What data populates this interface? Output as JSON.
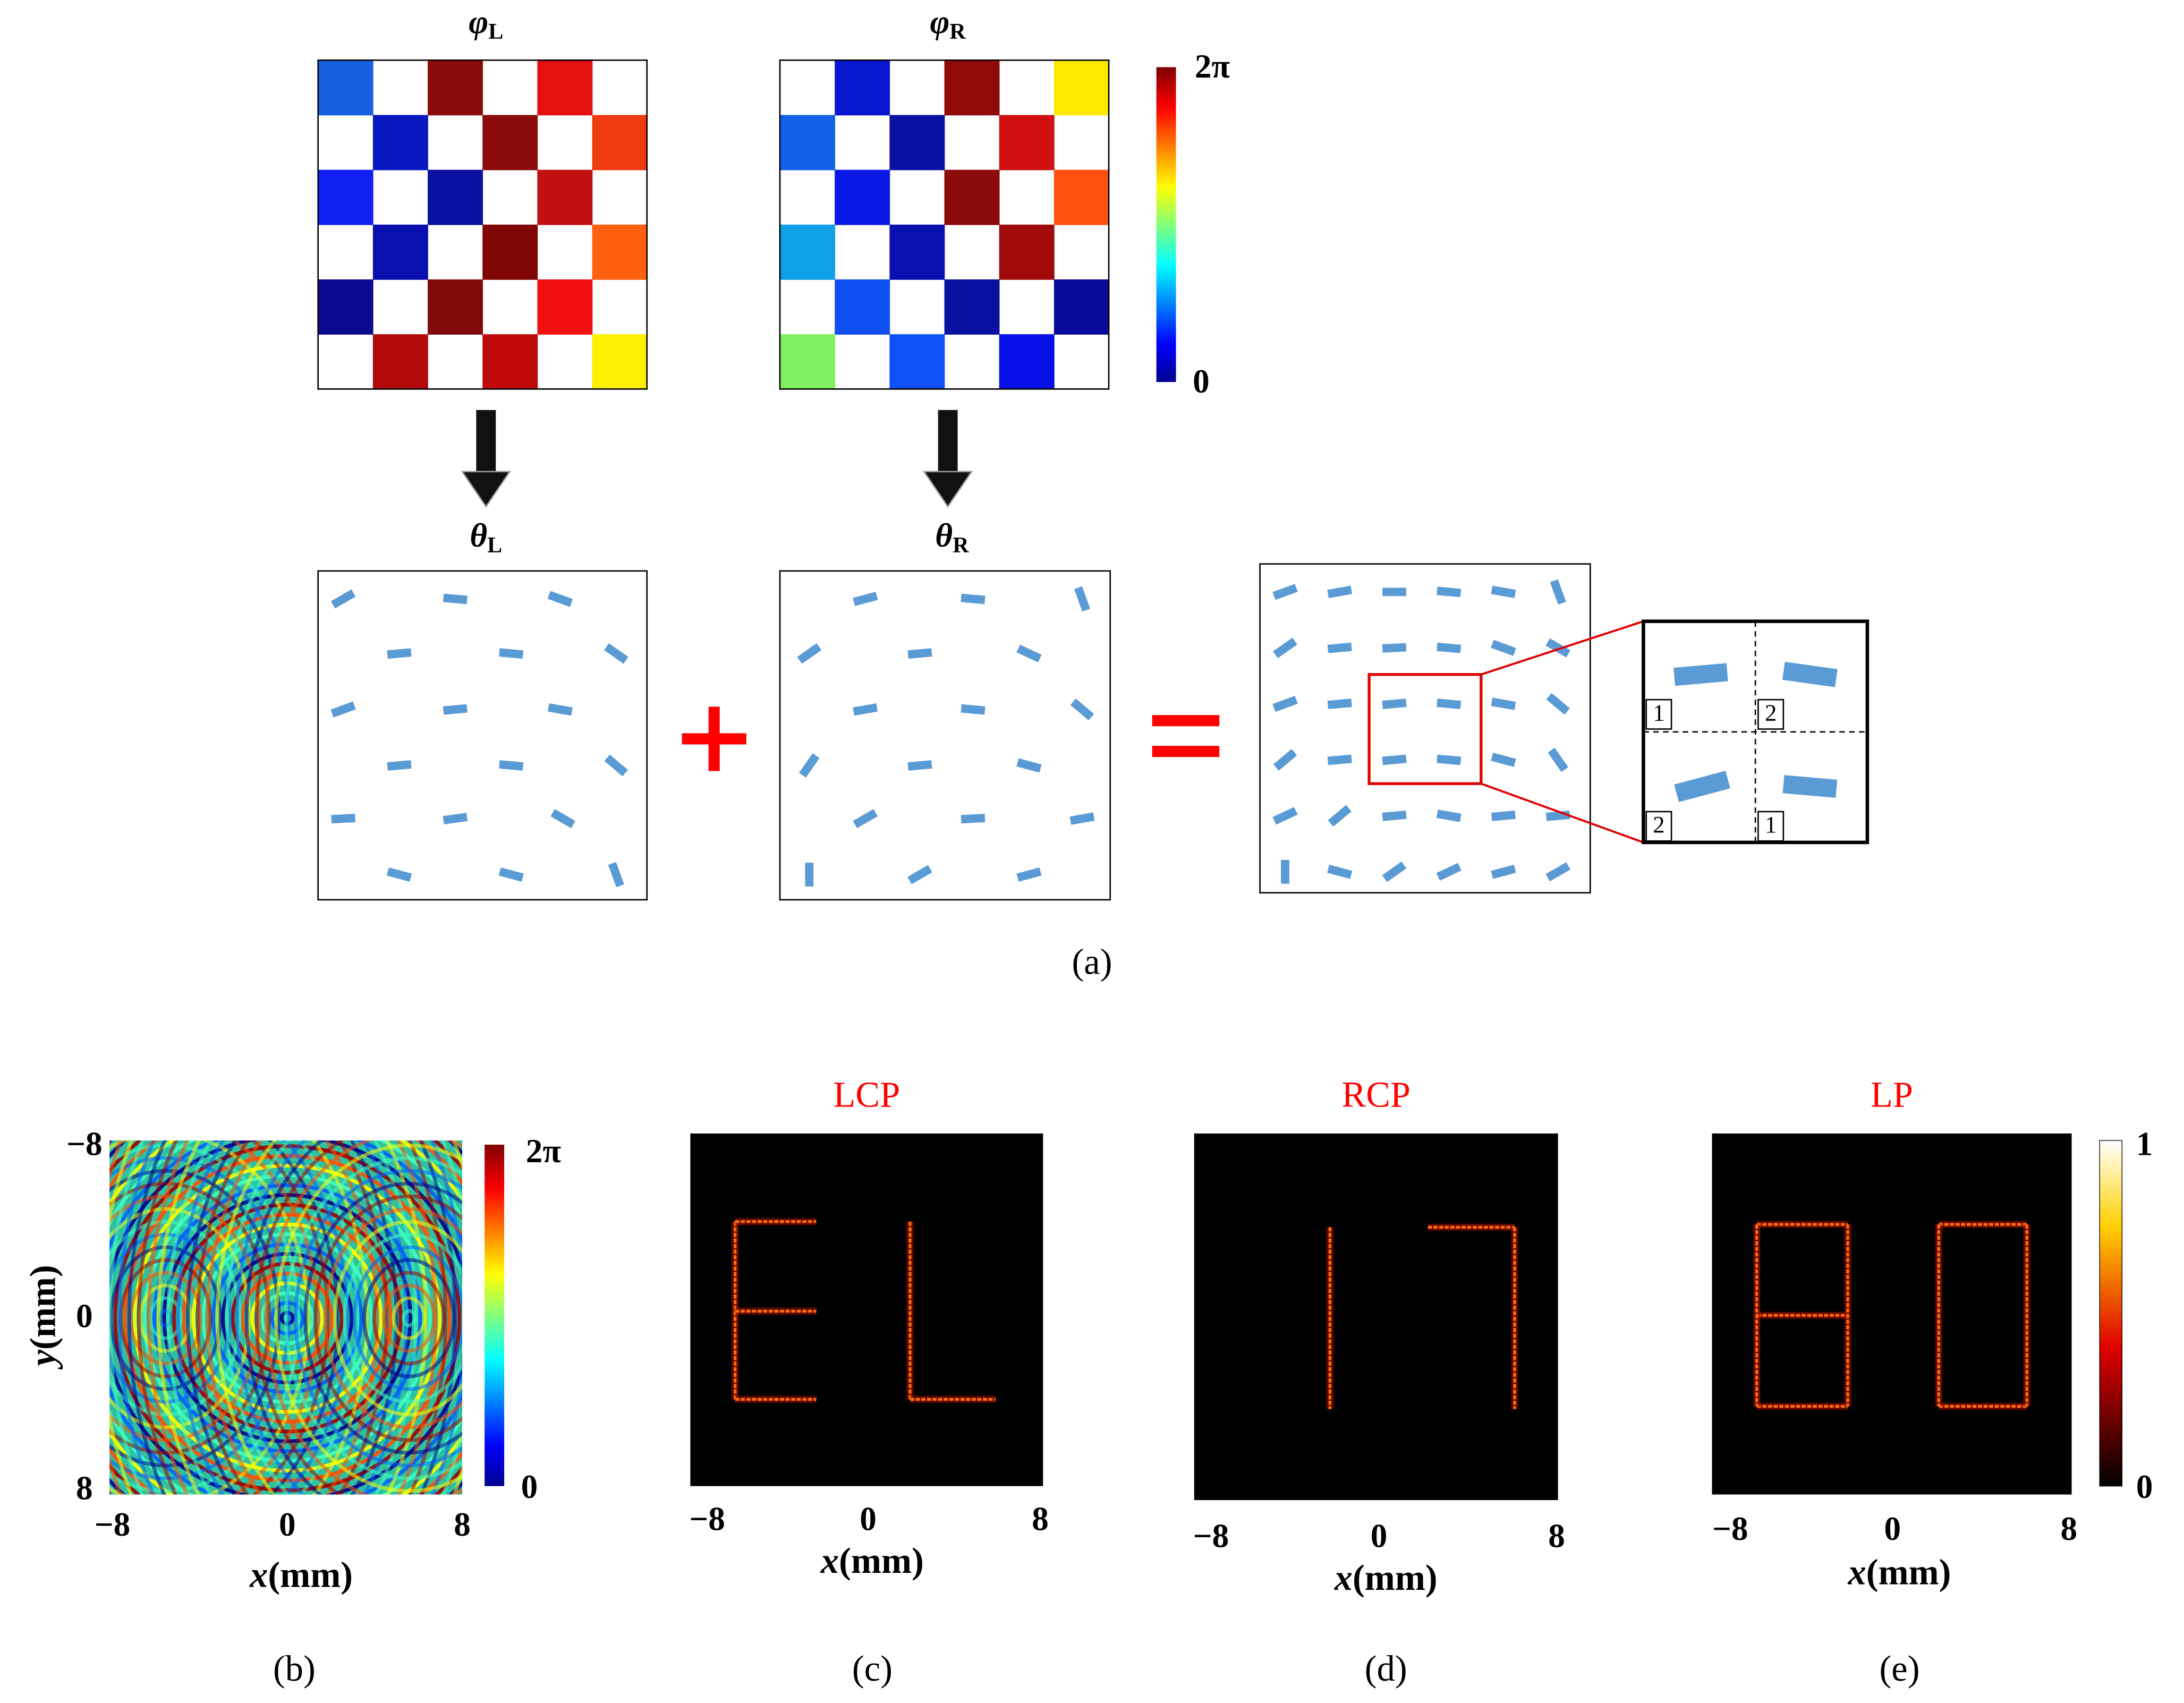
{
  "panel_a": {
    "phi_L": {
      "symbol": "φ",
      "subscript": "L"
    },
    "phi_R": {
      "symbol": "φ",
      "subscript": "R"
    },
    "colorbar": {
      "max": "2π",
      "min": "0"
    },
    "theta_L": {
      "symbol": "θ",
      "subscript": "L"
    },
    "theta_R": {
      "symbol": "θ",
      "subscript": "R"
    },
    "inset_labels": [
      "1",
      "2",
      "2",
      "1"
    ],
    "label": "(a)"
  },
  "panel_b": {
    "y_ticks": [
      "−8",
      "0",
      "8"
    ],
    "x_ticks": [
      "−8",
      "0",
      "8"
    ],
    "y_label": {
      "var": "y",
      "unit": "(mm)"
    },
    "x_label": {
      "var": "x",
      "unit": "(mm)"
    },
    "colorbar": {
      "max": "2π",
      "min": "0"
    },
    "label": "(b)"
  },
  "panel_c": {
    "title": "LCP",
    "x_ticks": [
      "−8",
      "0",
      "8"
    ],
    "x_label": {
      "var": "x",
      "unit": "(mm)"
    },
    "label": "(c)"
  },
  "panel_d": {
    "title": "RCP",
    "x_ticks": [
      "−8",
      "0",
      "8"
    ],
    "x_label": {
      "var": "x",
      "unit": "(mm)"
    },
    "label": "(d)"
  },
  "panel_e": {
    "title": "LP",
    "x_ticks": [
      "−8",
      "0",
      "8"
    ],
    "x_label": {
      "var": "x",
      "unit": "(mm)"
    },
    "colorbar": {
      "max": "1",
      "min": "0"
    },
    "label": "(e)"
  }
}
